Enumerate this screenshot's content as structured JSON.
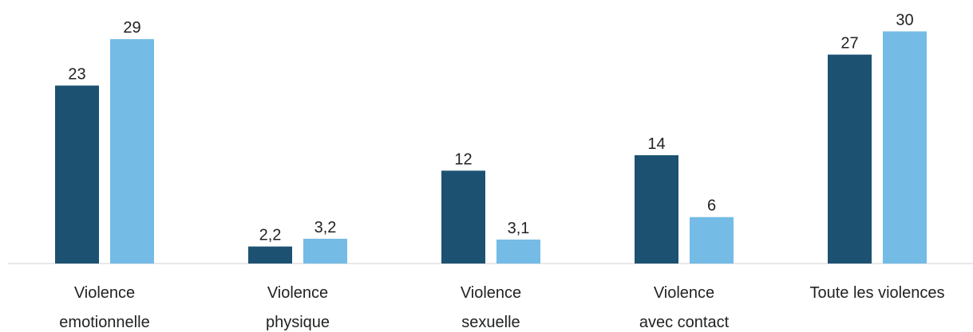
{
  "chart_data": {
    "type": "bar",
    "categories": [
      "Violence\nemotionnelle",
      "Violence\nphysique",
      "Violence\nsexuelle",
      "Violence\navec contact",
      "Toute les violences"
    ],
    "series": [
      {
        "color": "#1c5172",
        "values": [
          23,
          2.2,
          12,
          14,
          27
        ],
        "value_labels": [
          "23",
          "2,2",
          "12",
          "14",
          "27"
        ]
      },
      {
        "color": "#74bbe6",
        "values": [
          29,
          3.2,
          3.1,
          6,
          30
        ],
        "value_labels": [
          "29",
          "3,2",
          "3,1",
          "6",
          "30"
        ]
      }
    ],
    "ylim": [
      0,
      32
    ]
  }
}
